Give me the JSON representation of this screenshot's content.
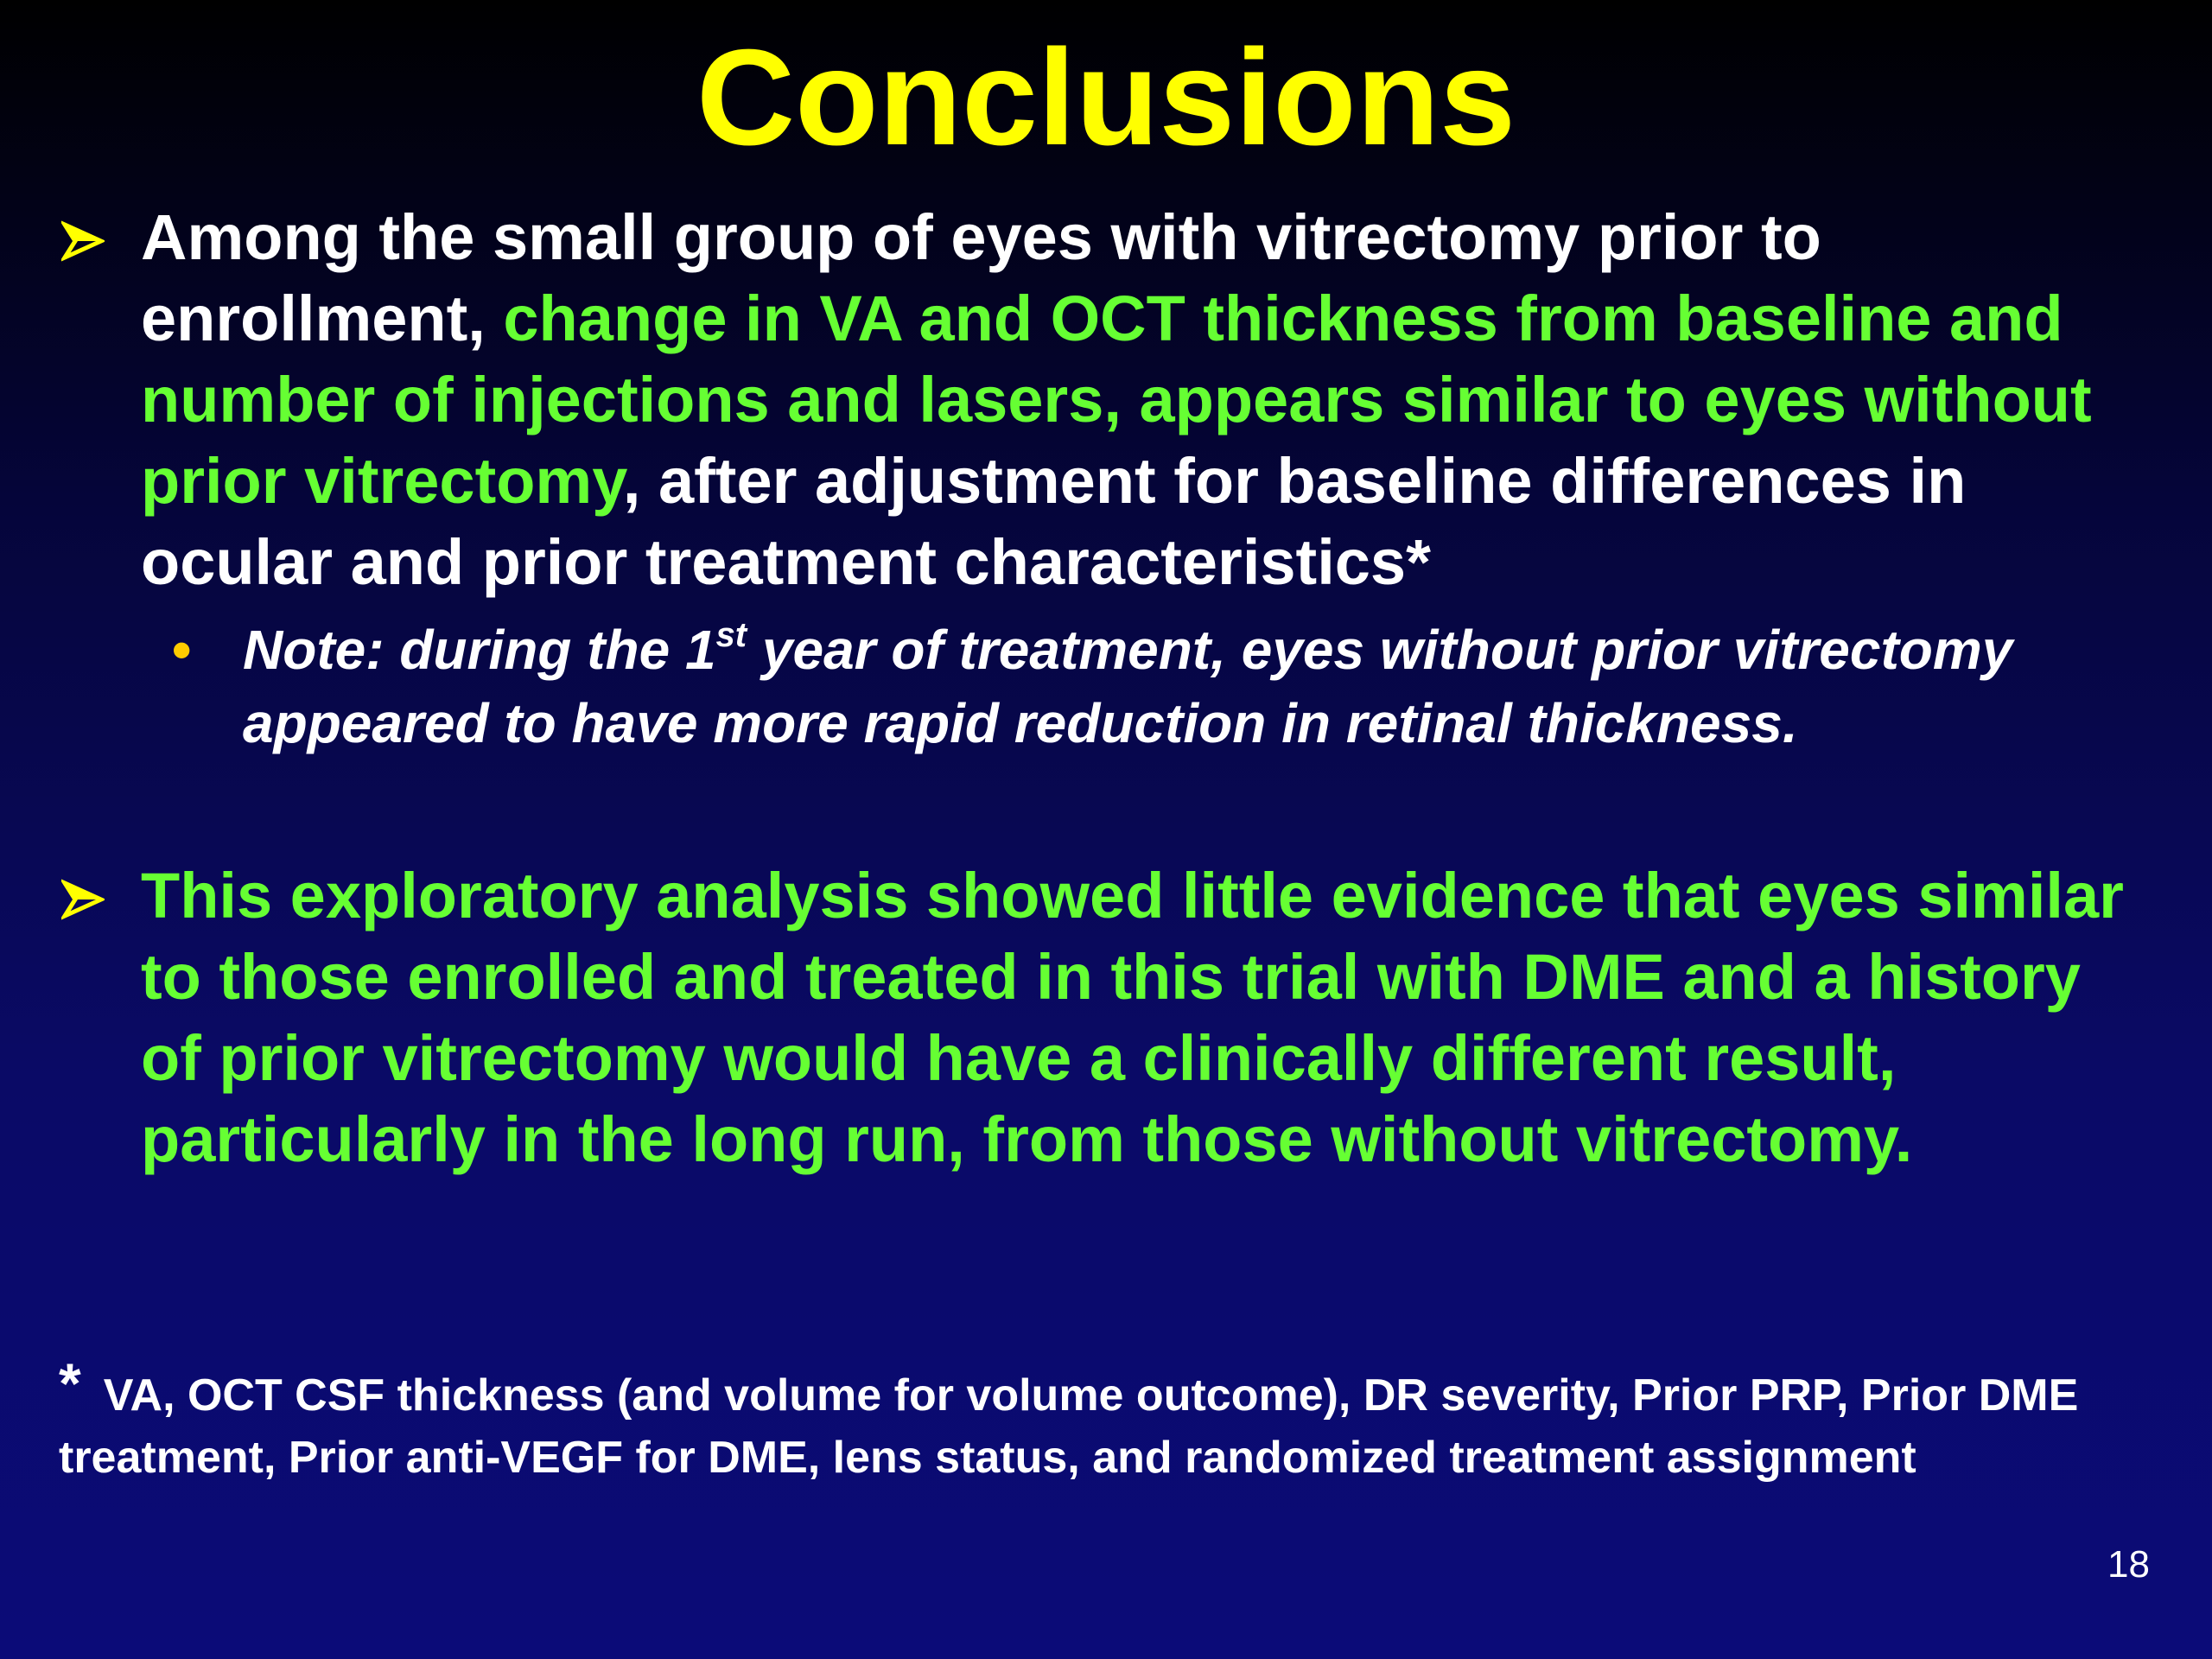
{
  "title": "Conclusions",
  "bullets": [
    {
      "segments": [
        "Among the small group of eyes with vitrectomy prior to enrollment, ",
        "change in VA and OCT thickness from baseline and number of injections and lasers, appears similar to eyes without prior vitrectomy",
        ", after adjustment for baseline differences in ocular and prior treatment characteristics*"
      ],
      "note": {
        "before": "Note: during the 1",
        "superscript": "st",
        "after": " year of treatment, eyes without prior vitrectomy appeared to have more rapid reduction in retinal thickness."
      }
    },
    {
      "segments": [
        "This exploratory analysis showed little evidence that eyes similar to those enrolled and treated in this trial with DME and a history of prior vitrectomy would have a clinically different result, particularly in the long run, from those without vitrectomy."
      ]
    }
  ],
  "footnote": {
    "marker": "*",
    "text": "VA, OCT CSF thickness (and volume for volume outcome), DR severity, Prior PRP, Prior DME treatment, Prior anti-VEGF for DME, lens status, and randomized treatment assignment"
  },
  "page_number": "18"
}
